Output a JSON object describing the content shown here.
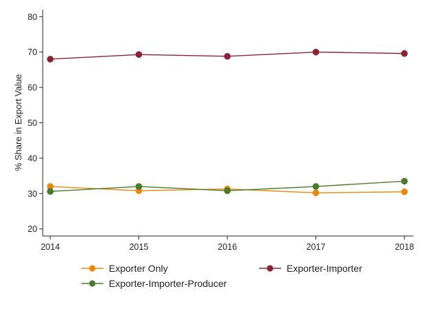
{
  "chart_data": {
    "type": "line",
    "title": "",
    "xlabel": "",
    "ylabel": "% Share in Export Value",
    "x": [
      2014,
      2015,
      2016,
      2017,
      2018
    ],
    "xticks": [
      "2014",
      "2015",
      "2016",
      "2017",
      "2018"
    ],
    "yticks": [
      "20",
      "30",
      "40",
      "50",
      "60",
      "70",
      "80"
    ],
    "ylim": [
      18,
      82
    ],
    "xlim": [
      2014,
      2018
    ],
    "grid": false,
    "legend_position": "bottom",
    "series": [
      {
        "name": "Exporter Only",
        "color": "#e8890c",
        "values": [
          32.0,
          30.8,
          31.3,
          30.2,
          30.5
        ]
      },
      {
        "name": "Exporter-Importer",
        "color": "#8c2334",
        "values": [
          68.0,
          69.3,
          68.8,
          70.0,
          69.6
        ]
      },
      {
        "name": "Exporter-Importer-Producer",
        "color": "#4a7a2a",
        "values": [
          30.6,
          32.0,
          30.8,
          32.0,
          33.5
        ]
      }
    ]
  }
}
